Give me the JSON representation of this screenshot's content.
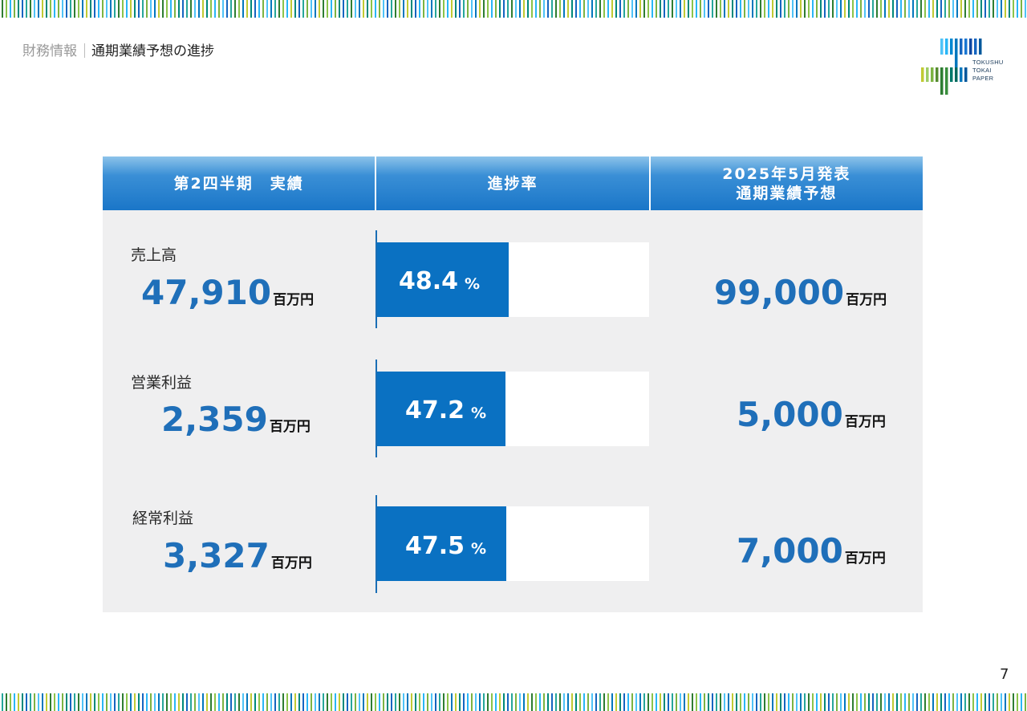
{
  "header": {
    "section": "財務情報",
    "title": "通期業績予想の進捗"
  },
  "logo": {
    "line1": "TOKUSHU",
    "line2": "TOKAI",
    "line3": "PAPER"
  },
  "table": {
    "col_actual": "第2四半期　実績",
    "col_progress": "進捗率",
    "col_forecast_line1": "2025年5月発表",
    "col_forecast_line2": "通期業績予想"
  },
  "rows": [
    {
      "label": "売上高",
      "actual": "47,910",
      "unit": "百万円",
      "progress": 48.4,
      "progress_text": "48.4",
      "pct_sign": "%",
      "forecast": "99,000"
    },
    {
      "label": "営業利益",
      "actual": "2,359",
      "unit": "百万円",
      "progress": 47.2,
      "progress_text": "47.2",
      "pct_sign": "%",
      "forecast": "5,000"
    },
    {
      "label": "経常利益",
      "actual": "3,327",
      "unit": "百万円",
      "progress": 47.5,
      "progress_text": "47.5",
      "pct_sign": "%",
      "forecast": "7,000"
    }
  ],
  "page_number": "7",
  "colors": {
    "accent": "#1f6fb9",
    "bar": "#0a71c2",
    "panel": "#efeff0"
  }
}
